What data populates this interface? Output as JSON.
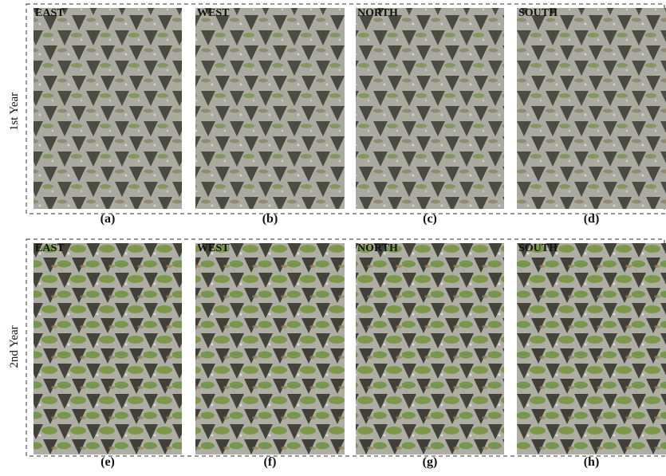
{
  "rows": [
    {
      "label": "1st Year",
      "panels": [
        {
          "direction": "EAST",
          "caption": "(a)"
        },
        {
          "direction": "WEST",
          "caption": "(b)"
        },
        {
          "direction": "NORTH",
          "caption": "(c)"
        },
        {
          "direction": "SOUTH",
          "caption": "(d)"
        }
      ]
    },
    {
      "label": "2nd Year",
      "panels": [
        {
          "direction": "EAST",
          "caption": "(e)"
        },
        {
          "direction": "WEST",
          "caption": "(f)"
        },
        {
          "direction": "NORTH",
          "caption": "(g)"
        },
        {
          "direction": "SOUTH",
          "caption": "(h)"
        }
      ]
    }
  ]
}
